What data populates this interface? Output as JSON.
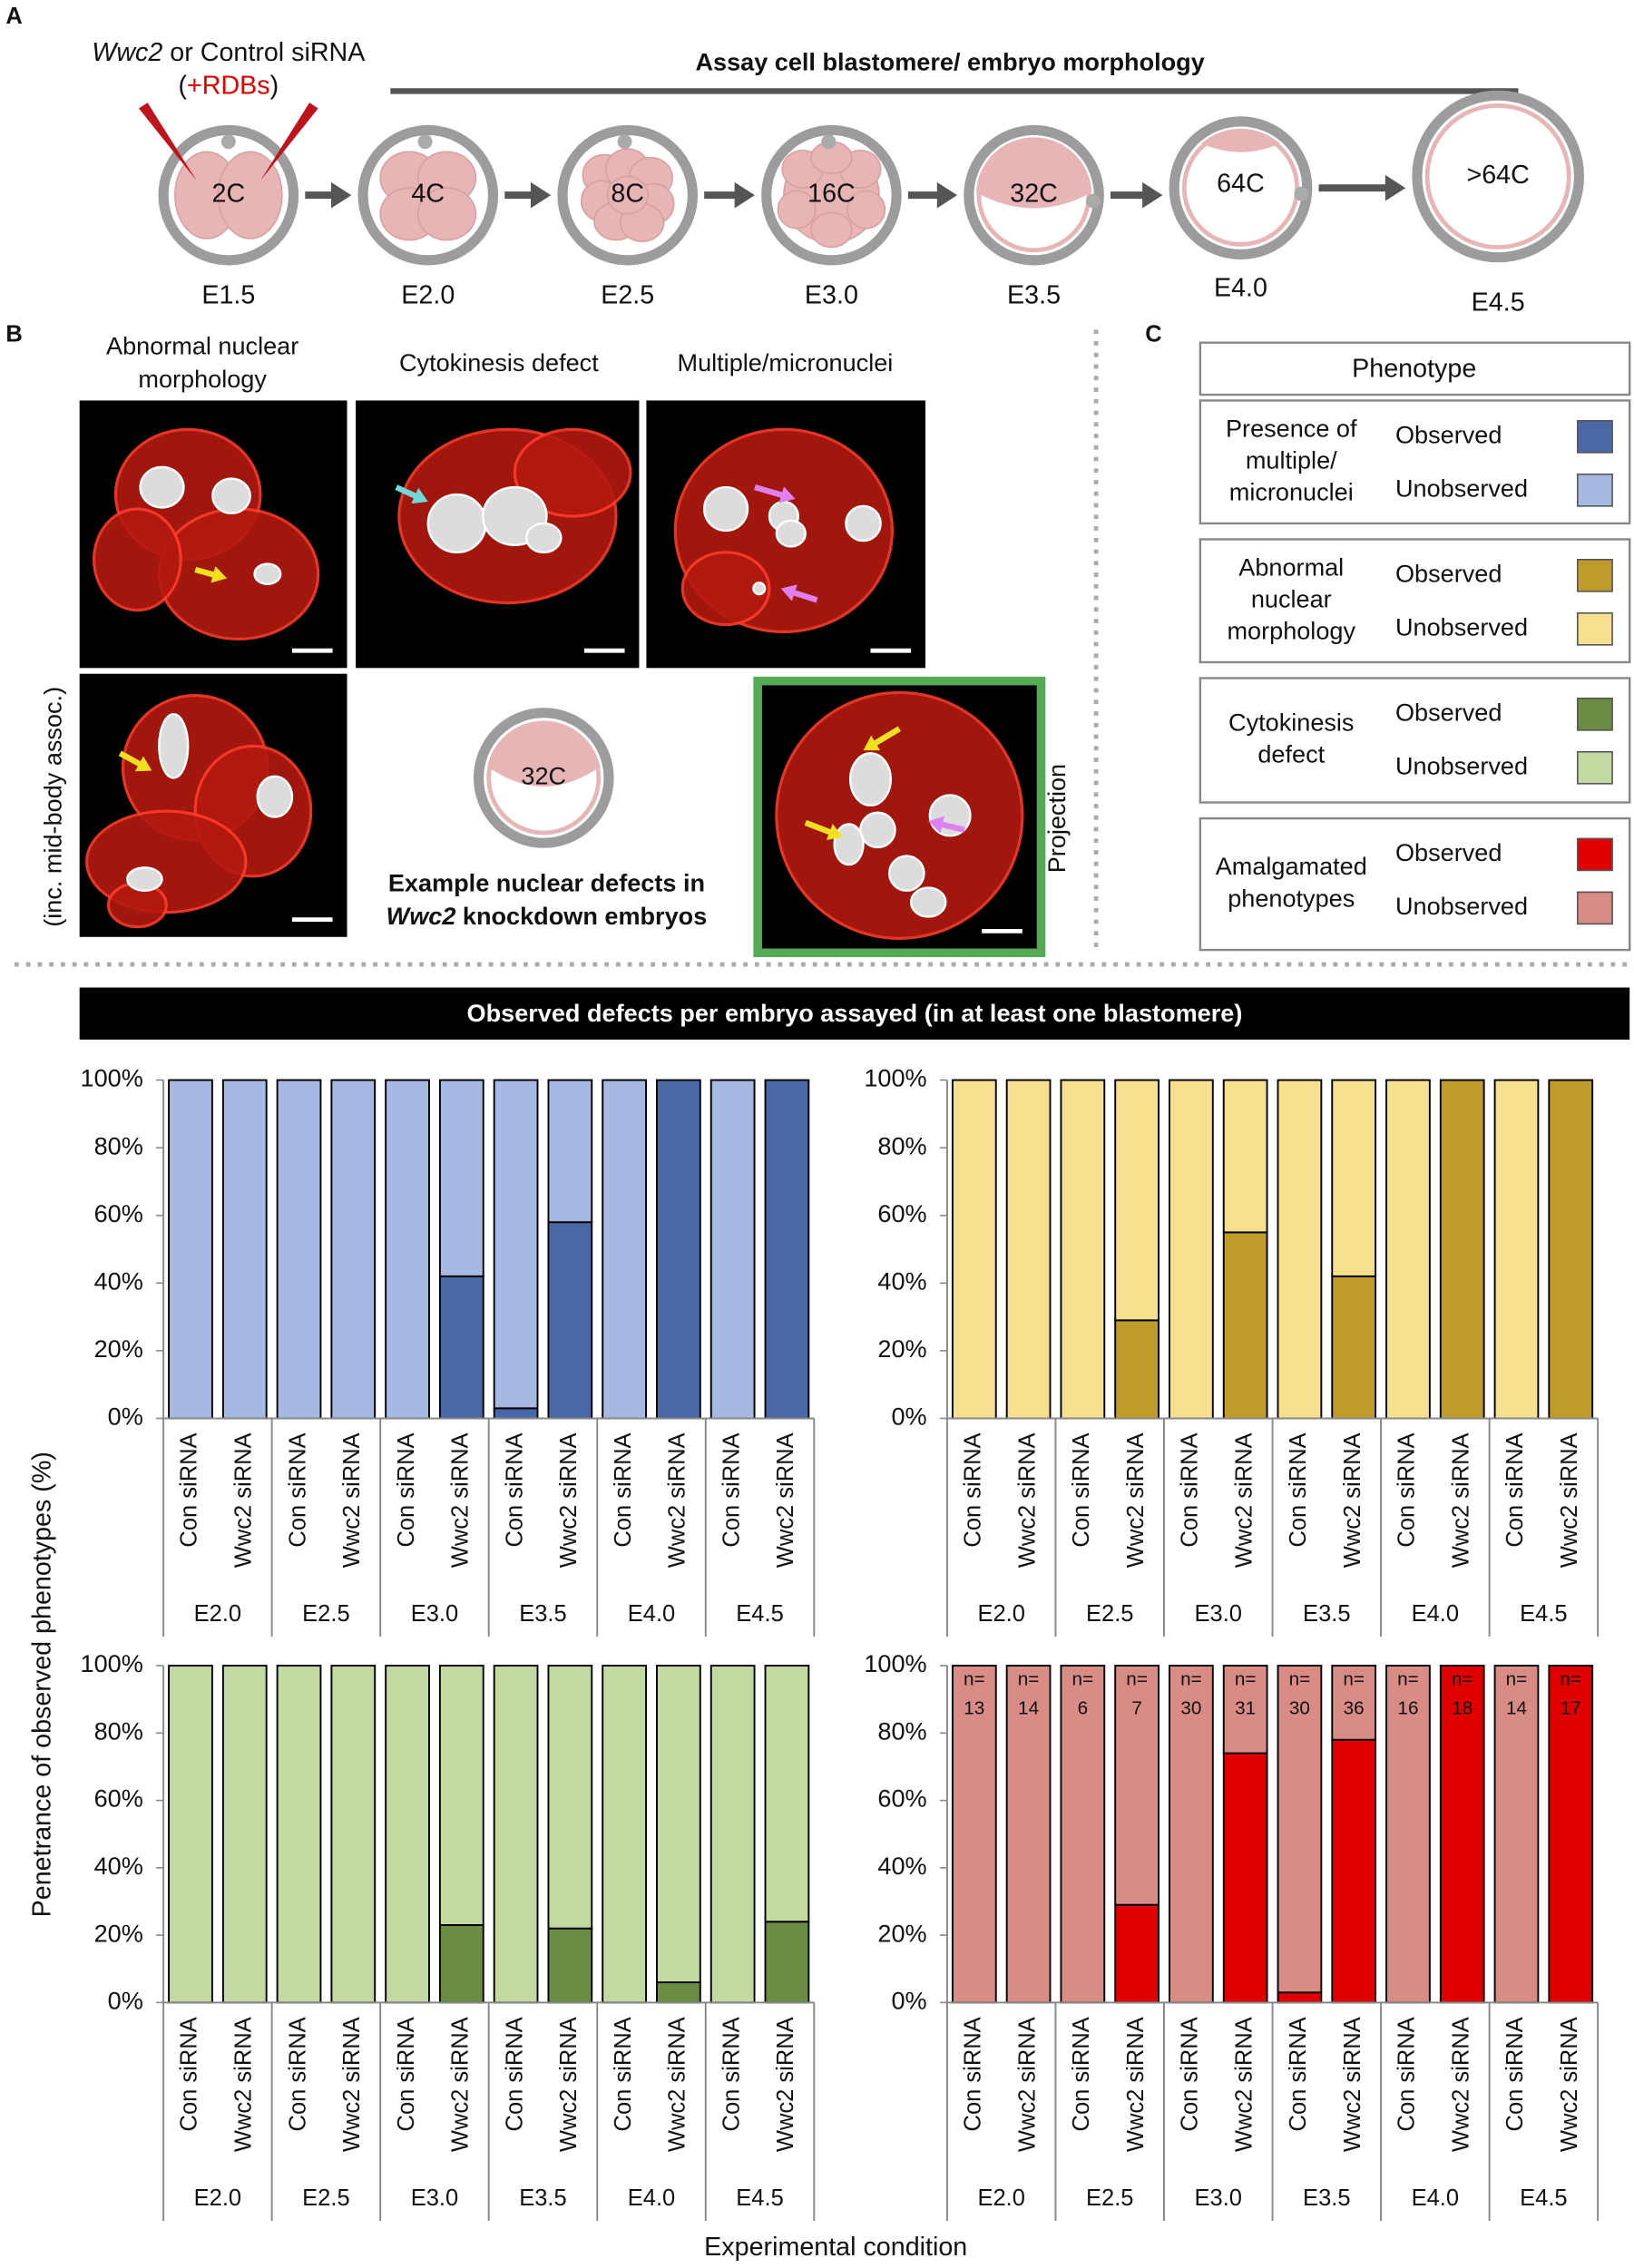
{
  "panel_a": {
    "label": "A",
    "sirna_gene": "Wwc2",
    "sirna_rest": " or Control siRNA",
    "rdb_open": "(",
    "rdb": "+RDBs",
    "rdb_close": ")",
    "assay": "Assay cell blastomere/ embryo morphology",
    "stages": [
      {
        "cells": "2C",
        "day": "E1.5"
      },
      {
        "cells": "4C",
        "day": "E2.0"
      },
      {
        "cells": "8C",
        "day": "E2.5"
      },
      {
        "cells": "16C",
        "day": "E3.0"
      },
      {
        "cells": "32C",
        "day": "E3.5"
      },
      {
        "cells": "64C",
        "day": "E4.0"
      },
      {
        "cells": ">64C",
        "day": "E4.5"
      }
    ]
  },
  "panel_b": {
    "label": "B",
    "captions": [
      [
        "Abnormal nuclear",
        "morphology"
      ],
      [
        "Cytokinesis defect"
      ],
      [
        "Multiple/micronuclei"
      ]
    ],
    "side_label": "(inc. mid-body assoc.)",
    "embryo_cells": "32C",
    "example": "Example nuclear defects in",
    "example_gene": "Wwc2",
    "example_rest": " knockdown embryos",
    "projection": "Projection"
  },
  "panel_c": {
    "label": "C",
    "title": "Phenotype"
  },
  "banner": "Observed defects per embryo assayed (in at least one blastomere)",
  "ylabel": "Penetrance of observed phenotypes (%)",
  "xlabel": "Experimental condition",
  "chart_data": [
    {
      "type": "bar",
      "stacked": true,
      "phenotype": [
        "Presence of",
        "multiple/",
        "micronuclei"
      ],
      "categories": [
        "Con siRNA",
        "Wwc2 siRNA",
        "Con siRNA",
        "Wwc2 siRNA",
        "Con siRNA",
        "Wwc2 siRNA",
        "Con siRNA",
        "Wwc2 siRNA",
        "Con siRNA",
        "Wwc2 siRNA",
        "Con siRNA",
        "Wwc2 siRNA"
      ],
      "groups": [
        "E2.0",
        "E2.5",
        "E3.0",
        "E3.5",
        "E4.0",
        "E4.5"
      ],
      "series": [
        {
          "name": "Observed",
          "color": "#4a67a8",
          "values": [
            0,
            0,
            0,
            0,
            0,
            42,
            3,
            58,
            0,
            100,
            0,
            100
          ]
        },
        {
          "name": "Unobserved",
          "color": "#a6b9e3",
          "values": [
            100,
            100,
            100,
            100,
            100,
            58,
            97,
            42,
            100,
            0,
            100,
            0
          ]
        }
      ],
      "ylim": [
        0,
        100
      ],
      "yticks": [
        {
          "value": 0,
          "label": "0%"
        },
        {
          "value": 20,
          "label": "20%"
        },
        {
          "value": 40,
          "label": "40%"
        },
        {
          "value": 60,
          "label": "60%"
        },
        {
          "value": 80,
          "label": "80%"
        },
        {
          "value": 100,
          "label": "100%"
        }
      ]
    },
    {
      "type": "bar",
      "stacked": true,
      "phenotype": [
        "Abnormal",
        "nuclear",
        "morphology"
      ],
      "categories": [
        "Con siRNA",
        "Wwc2 siRNA",
        "Con siRNA",
        "Wwc2 siRNA",
        "Con siRNA",
        "Wwc2 siRNA",
        "Con siRNA",
        "Wwc2 siRNA",
        "Con siRNA",
        "Wwc2 siRNA",
        "Con siRNA",
        "Wwc2 siRNA"
      ],
      "groups": [
        "E2.0",
        "E2.5",
        "E3.0",
        "E3.5",
        "E4.0",
        "E4.5"
      ],
      "series": [
        {
          "name": "Observed",
          "color": "#bf9b2b",
          "values": [
            0,
            0,
            0,
            29,
            0,
            55,
            0,
            42,
            0,
            100,
            0,
            100
          ]
        },
        {
          "name": "Unobserved",
          "color": "#f6df8f",
          "values": [
            100,
            100,
            100,
            71,
            100,
            45,
            100,
            58,
            100,
            0,
            100,
            0
          ]
        }
      ],
      "ylim": [
        0,
        100
      ],
      "yticks": [
        {
          "value": 0,
          "label": "0%"
        },
        {
          "value": 20,
          "label": "20%"
        },
        {
          "value": 40,
          "label": "40%"
        },
        {
          "value": 60,
          "label": "60%"
        },
        {
          "value": 80,
          "label": "80%"
        },
        {
          "value": 100,
          "label": "100%"
        }
      ]
    },
    {
      "type": "bar",
      "stacked": true,
      "phenotype": [
        "Cytokinesis",
        "defect"
      ],
      "categories": [
        "Con siRNA",
        "Wwc2 siRNA",
        "Con siRNA",
        "Wwc2 siRNA",
        "Con siRNA",
        "Wwc2 siRNA",
        "Con siRNA",
        "Wwc2 siRNA",
        "Con siRNA",
        "Wwc2 siRNA",
        "Con siRNA",
        "Wwc2 siRNA"
      ],
      "groups": [
        "E2.0",
        "E2.5",
        "E3.0",
        "E3.5",
        "E4.0",
        "E4.5"
      ],
      "series": [
        {
          "name": "Observed",
          "color": "#6a8c43",
          "values": [
            0,
            0,
            0,
            0,
            0,
            23,
            0,
            22,
            0,
            6,
            0,
            24
          ]
        },
        {
          "name": "Unobserved",
          "color": "#c3d9a2",
          "values": [
            100,
            100,
            100,
            100,
            100,
            77,
            100,
            78,
            100,
            94,
            100,
            76
          ]
        }
      ],
      "ylim": [
        0,
        100
      ],
      "yticks": [
        {
          "value": 0,
          "label": "0%"
        },
        {
          "value": 20,
          "label": "20%"
        },
        {
          "value": 40,
          "label": "40%"
        },
        {
          "value": 60,
          "label": "60%"
        },
        {
          "value": 80,
          "label": "80%"
        },
        {
          "value": 100,
          "label": "100%"
        }
      ]
    },
    {
      "type": "bar",
      "stacked": true,
      "phenotype": [
        "Amalgamated",
        "phenotypes"
      ],
      "categories": [
        "Con siRNA",
        "Wwc2 siRNA",
        "Con siRNA",
        "Wwc2 siRNA",
        "Con siRNA",
        "Wwc2 siRNA",
        "Con siRNA",
        "Wwc2 siRNA",
        "Con siRNA",
        "Wwc2 siRNA",
        "Con siRNA",
        "Wwc2 siRNA"
      ],
      "groups": [
        "E2.0",
        "E2.5",
        "E3.0",
        "E3.5",
        "E4.0",
        "E4.5"
      ],
      "series": [
        {
          "name": "Observed",
          "color": "#e00000",
          "values": [
            0,
            0,
            0,
            29,
            0,
            74,
            3,
            78,
            0,
            100,
            0,
            100
          ]
        },
        {
          "name": "Unobserved",
          "color": "#d98b86",
          "values": [
            100,
            100,
            100,
            71,
            100,
            26,
            97,
            22,
            100,
            0,
            100,
            0
          ]
        }
      ],
      "n_prefix": "n=",
      "n": [
        13,
        14,
        6,
        7,
        30,
        31,
        30,
        36,
        16,
        18,
        14,
        17
      ],
      "ylim": [
        0,
        100
      ],
      "yticks": [
        {
          "value": 0,
          "label": "0%"
        },
        {
          "value": 20,
          "label": "20%"
        },
        {
          "value": 40,
          "label": "40%"
        },
        {
          "value": 60,
          "label": "60%"
        },
        {
          "value": 80,
          "label": "80%"
        },
        {
          "value": 100,
          "label": "100%"
        }
      ]
    }
  ]
}
